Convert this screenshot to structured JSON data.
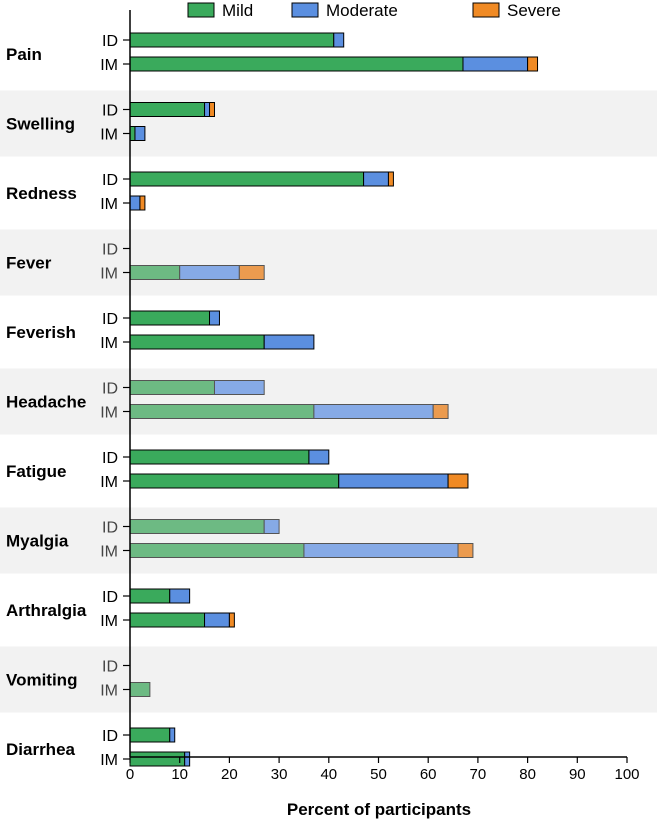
{
  "chart_data": {
    "type": "bar",
    "orientation": "horizontal",
    "stacked": true,
    "xlabel": "Percent of participants",
    "xlim": [
      0,
      100
    ],
    "xticks": [
      0,
      10,
      20,
      30,
      40,
      50,
      60,
      70,
      80,
      90,
      100
    ],
    "legend": {
      "placement": "top",
      "entries": [
        {
          "name": "Mild",
          "color": "#3aaa5c"
        },
        {
          "name": "Moderate",
          "color": "#5b8fe0"
        },
        {
          "name": "Severe",
          "color": "#f08a24"
        }
      ]
    },
    "routes": [
      "ID",
      "IM"
    ],
    "groups": [
      {
        "name": "Pain",
        "bars": [
          {
            "route": "ID",
            "values": [
              41,
              2,
              0
            ],
            "faded": false
          },
          {
            "route": "IM",
            "values": [
              67,
              13,
              2
            ],
            "faded": false
          }
        ]
      },
      {
        "name": "Swelling",
        "bars": [
          {
            "route": "ID",
            "values": [
              15,
              1,
              1
            ],
            "faded": false
          },
          {
            "route": "IM",
            "values": [
              1,
              2,
              0
            ],
            "faded": false
          }
        ]
      },
      {
        "name": "Redness",
        "bars": [
          {
            "route": "ID",
            "values": [
              47,
              5,
              1
            ],
            "faded": false
          },
          {
            "route": "IM",
            "values": [
              0,
              2,
              1
            ],
            "faded": false
          }
        ]
      },
      {
        "name": "Fever",
        "bars": [
          {
            "route": "ID",
            "values": [
              0,
              0,
              0
            ],
            "faded": true
          },
          {
            "route": "IM",
            "values": [
              10,
              12,
              5
            ],
            "faded": true
          }
        ]
      },
      {
        "name": "Feverish",
        "bars": [
          {
            "route": "ID",
            "values": [
              16,
              2,
              0
            ],
            "faded": false
          },
          {
            "route": "IM",
            "values": [
              27,
              10,
              0
            ],
            "faded": false
          }
        ]
      },
      {
        "name": "Headache",
        "bars": [
          {
            "route": "ID",
            "values": [
              17,
              10,
              0
            ],
            "faded": true
          },
          {
            "route": "IM",
            "values": [
              37,
              24,
              3
            ],
            "faded": true
          }
        ]
      },
      {
        "name": "Fatigue",
        "bars": [
          {
            "route": "ID",
            "values": [
              36,
              4,
              0
            ],
            "faded": false
          },
          {
            "route": "IM",
            "values": [
              42,
              22,
              4
            ],
            "faded": false
          }
        ]
      },
      {
        "name": "Myalgia",
        "bars": [
          {
            "route": "ID",
            "values": [
              27,
              3,
              0
            ],
            "faded": true
          },
          {
            "route": "IM",
            "values": [
              35,
              31,
              3
            ],
            "faded": true
          }
        ]
      },
      {
        "name": "Arthralgia",
        "bars": [
          {
            "route": "ID",
            "values": [
              8,
              4,
              0
            ],
            "faded": false
          },
          {
            "route": "IM",
            "values": [
              15,
              5,
              1
            ],
            "faded": false
          }
        ]
      },
      {
        "name": "Vomiting",
        "bars": [
          {
            "route": "ID",
            "values": [
              0,
              0,
              0
            ],
            "faded": true
          },
          {
            "route": "IM",
            "values": [
              4,
              0,
              0
            ],
            "faded": true
          }
        ]
      },
      {
        "name": "Diarrhea",
        "bars": [
          {
            "route": "ID",
            "values": [
              8,
              1,
              0
            ],
            "faded": false
          },
          {
            "route": "IM",
            "values": [
              11,
              1,
              0
            ],
            "faded": false
          }
        ]
      }
    ],
    "shaded_groups": [
      "Swelling",
      "Fever",
      "Headache",
      "Myalgia",
      "Vomiting"
    ],
    "band_color": "#f2f2f2"
  }
}
